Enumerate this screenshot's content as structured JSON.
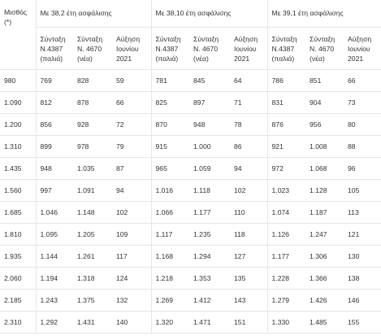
{
  "header": {
    "salary_label": "Μισθός",
    "salary_note": "(*)",
    "groups": [
      "Με 38,2 έτη ασφάλισης",
      "Με 38,10 έτη ασφάλισης",
      "Με 39,1 έτη ασφάλισης"
    ],
    "subcols": [
      [
        "Σύνταξη",
        "Ν.4387",
        "(παλιά)"
      ],
      [
        "Σύνταξη",
        "Ν. 4670",
        "(νέα)"
      ],
      [
        "Αύξηση",
        "Ιουνίου",
        "2021"
      ]
    ]
  },
  "rows": [
    [
      "980",
      "769",
      "828",
      "59",
      "781",
      "845",
      "64",
      "786",
      "851",
      "66"
    ],
    [
      "1.090",
      "812",
      "878",
      "66",
      "825",
      "897",
      "71",
      "831",
      "904",
      "73"
    ],
    [
      "1.200",
      "856",
      "928",
      "72",
      "870",
      "948",
      "78",
      "876",
      "956",
      "80"
    ],
    [
      "1.310",
      "899",
      "978",
      "79",
      "915",
      "1.000",
      "86",
      "921",
      "1.008",
      "88"
    ],
    [
      "1.435",
      "948",
      "1.035",
      "87",
      "965",
      "1.059",
      "94",
      "972",
      "1.068",
      "96"
    ],
    [
      "1.560",
      "997",
      "1.091",
      "94",
      "1.016",
      "1.118",
      "102",
      "1.023",
      "1.128",
      "105"
    ],
    [
      "1.685",
      "1.046",
      "1.148",
      "102",
      "1.066",
      "1.177",
      "110",
      "1.074",
      "1.187",
      "113"
    ],
    [
      "1.810",
      "1.095",
      "1.205",
      "109",
      "1.117",
      "1.235",
      "118",
      "1.126",
      "1.247",
      "121"
    ],
    [
      "1.935",
      "1.144",
      "1.261",
      "117",
      "1.168",
      "1.294",
      "127",
      "1.177",
      "1.306",
      "130"
    ],
    [
      "2.060",
      "1.194",
      "1.318",
      "124",
      "1.218",
      "1.353",
      "135",
      "1.228",
      "1.366",
      "138"
    ],
    [
      "2.185",
      "1.243",
      "1.375",
      "132",
      "1.269",
      "1.412",
      "143",
      "1.279",
      "1.426",
      "146"
    ],
    [
      "2.310",
      "1.292",
      "1.431",
      "140",
      "1.320",
      "1.471",
      "151",
      "1.330",
      "1.485",
      "155"
    ]
  ]
}
